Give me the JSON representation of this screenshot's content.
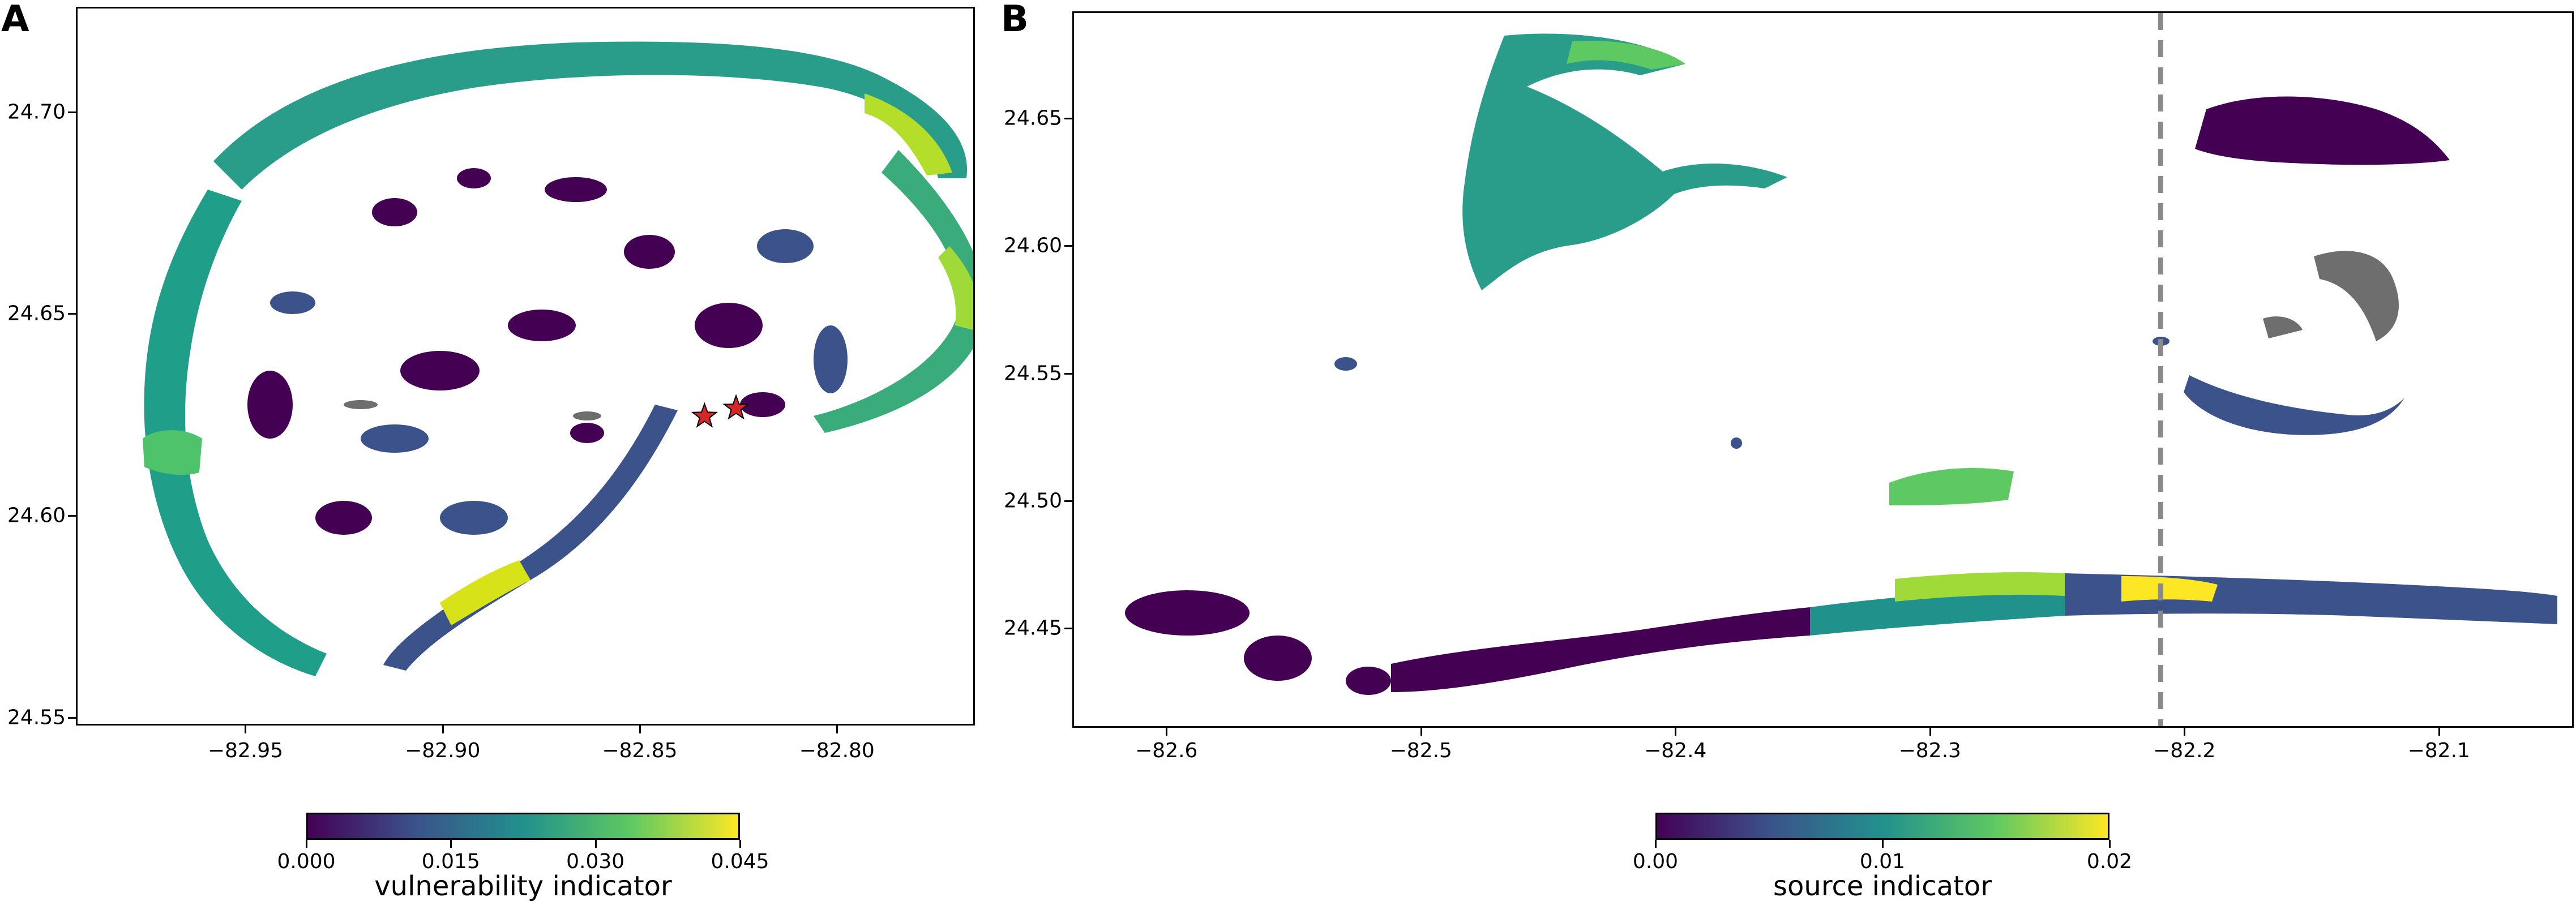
{
  "panel_a": {
    "letter": "A",
    "y_ticks": [
      "24.70",
      "24.65",
      "24.60",
      "24.55"
    ],
    "x_ticks": [
      "−82.95",
      "−82.90",
      "−82.85",
      "−82.80"
    ],
    "markers": [
      {
        "label": "star",
        "lon": -82.834,
        "lat": 24.625,
        "color": "#d62728"
      },
      {
        "label": "star",
        "lon": -82.826,
        "lat": 24.627,
        "color": "#d62728"
      }
    ],
    "colorbar": {
      "title": "vulnerability indicator",
      "ticks": [
        "0.000",
        "0.015",
        "0.030",
        "0.045"
      ],
      "range": [
        0.0,
        0.045
      ]
    }
  },
  "panel_b": {
    "letter": "B",
    "y_ticks": [
      "24.65",
      "24.60",
      "24.55",
      "24.50",
      "24.45"
    ],
    "x_ticks": [
      "−82.6",
      "−82.5",
      "−82.4",
      "−82.3",
      "−82.2",
      "−82.1"
    ],
    "reference_line_lon": -82.21,
    "colorbar": {
      "title": "source indicator",
      "ticks": [
        "0.00",
        "0.01",
        "0.02"
      ],
      "range": [
        0.0,
        0.02
      ]
    }
  },
  "colors": {
    "viridis_low": "#440154",
    "viridis_mid": "#21918c",
    "viridis_high": "#fde725",
    "no_data_gray": "#6e6e6e",
    "reference_line": "#8a8a8a"
  }
}
